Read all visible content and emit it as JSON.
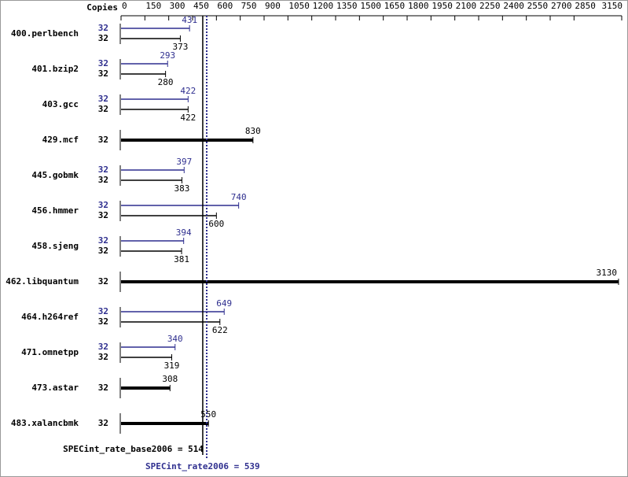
{
  "chart_data": {
    "type": "bar",
    "orientation": "horizontal",
    "x_label": "Copies",
    "categories": [
      "400.perlbench",
      "401.bzip2",
      "403.gcc",
      "429.mcf",
      "445.gobmk",
      "456.hmmer",
      "458.sjeng",
      "462.libquantum",
      "464.h264ref",
      "471.omnetpp",
      "473.astar",
      "483.xalancbmk"
    ],
    "series": [
      {
        "color": "#2f2f8f",
        "copies": [
          32,
          32,
          32,
          null,
          32,
          32,
          32,
          null,
          32,
          32,
          null,
          null
        ],
        "values": [
          431,
          293,
          422,
          null,
          397,
          740,
          394,
          null,
          649,
          340,
          null,
          null
        ]
      },
      {
        "color": "#000000",
        "copies": [
          32,
          32,
          32,
          32,
          32,
          32,
          32,
          32,
          32,
          32,
          32,
          32
        ],
        "values": [
          373,
          280,
          422,
          830,
          383,
          600,
          381,
          3130,
          622,
          319,
          308,
          550
        ]
      }
    ],
    "xlim": [
      0,
      3150
    ],
    "xticks": [
      0,
      150,
      300,
      450,
      600,
      750,
      900,
      1050,
      1200,
      1350,
      1500,
      1650,
      1800,
      1950,
      2100,
      2250,
      2400,
      2550,
      2700,
      2850,
      3150
    ],
    "reference_lines": [
      {
        "label": "SPECint_rate_base2006 = 514",
        "value": 514,
        "color": "#000000",
        "style": "solid"
      },
      {
        "label": "SPECint_rate2006 = 539",
        "value": 539,
        "color": "#2f2f8f",
        "style": "dotted"
      }
    ]
  }
}
